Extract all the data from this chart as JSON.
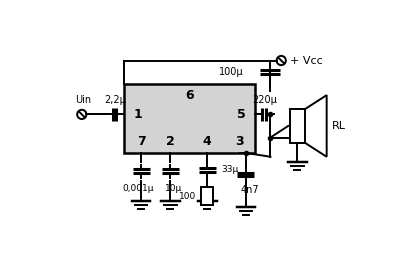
{
  "bg_color": "#ffffff",
  "chip_color": "#d3d3d3",
  "vcc_label": "+ Vcc",
  "cap_220u": "220μ",
  "cap_100u": "100μ",
  "cap_33u": "33μ",
  "cap_10u": "10μ",
  "cap_0001u": "0,001μ",
  "cap_4n7": "4n7",
  "cap_100": "100",
  "cap_22u": "2,2μ",
  "rl_label": "RL",
  "uin_label": "Uin"
}
